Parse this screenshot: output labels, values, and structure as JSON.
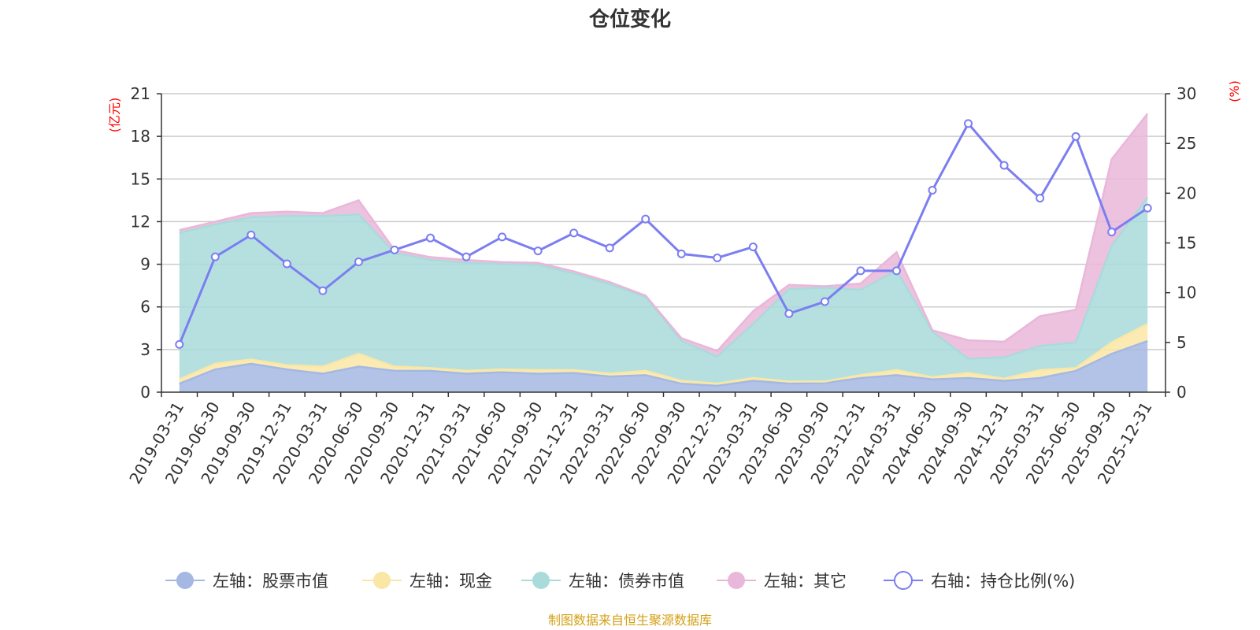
{
  "chart_data": {
    "type": "area",
    "title": "仓位变化",
    "left_axis_unit": "(亿元)",
    "right_axis_unit": "(%)",
    "left_ylim": [
      0,
      21
    ],
    "left_yticks": [
      0,
      3,
      6,
      9,
      12,
      15,
      18,
      21
    ],
    "right_ylim": [
      0,
      30
    ],
    "right_yticks": [
      0,
      5,
      10,
      15,
      20,
      25,
      30
    ],
    "categories": [
      "2019-03-31",
      "2019-06-30",
      "2019-09-30",
      "2019-12-31",
      "2020-03-31",
      "2020-06-30",
      "2020-09-30",
      "2020-12-31",
      "2021-03-31",
      "2021-06-30",
      "2021-09-30",
      "2021-12-31",
      "2022-03-31",
      "2022-06-30",
      "2022-09-30",
      "2022-12-31",
      "2023-03-31",
      "2023-06-30",
      "2023-09-30",
      "2023-12-31",
      "2024-03-31",
      "2024-06-30",
      "2024-09-30",
      "2024-12-31",
      "2025-03-31",
      "2025-06-30",
      "2025-09-30",
      "2025-12-31"
    ],
    "stacked_series": [
      {
        "name": "左轴：股票市值",
        "axis": "left",
        "color": "#a4b8e3",
        "values": [
          0.6,
          1.6,
          2.0,
          1.6,
          1.3,
          1.8,
          1.5,
          1.5,
          1.3,
          1.4,
          1.3,
          1.35,
          1.1,
          1.2,
          0.6,
          0.45,
          0.8,
          0.6,
          0.65,
          1.0,
          1.2,
          0.9,
          1.0,
          0.8,
          1.0,
          1.5,
          2.7,
          3.6
        ]
      },
      {
        "name": "左轴：现金",
        "axis": "left",
        "color": "#fae7a5",
        "values": [
          0.3,
          0.4,
          0.3,
          0.3,
          0.5,
          0.9,
          0.3,
          0.2,
          0.2,
          0.2,
          0.25,
          0.2,
          0.2,
          0.3,
          0.2,
          0.15,
          0.2,
          0.15,
          0.1,
          0.2,
          0.35,
          0.15,
          0.35,
          0.15,
          0.55,
          0.2,
          0.8,
          1.2
        ]
      },
      {
        "name": "左轴：债券市值",
        "axis": "left",
        "color": "#a9dbdb",
        "values": [
          10.3,
          9.8,
          10.0,
          10.5,
          10.6,
          9.8,
          8.0,
          7.6,
          7.6,
          7.4,
          7.4,
          6.8,
          6.3,
          5.2,
          2.8,
          1.9,
          3.8,
          6.5,
          6.6,
          6.0,
          7.0,
          3.2,
          1.0,
          1.5,
          1.7,
          1.8,
          6.8,
          8.9
        ]
      },
      {
        "name": "左轴：其它",
        "axis": "left",
        "color": "#e9b7d9",
        "values": [
          0.2,
          0.2,
          0.3,
          0.3,
          0.2,
          1.0,
          0.2,
          0.2,
          0.2,
          0.15,
          0.15,
          0.15,
          0.15,
          0.1,
          0.2,
          0.4,
          0.9,
          0.3,
          0.1,
          0.45,
          1.3,
          0.1,
          1.3,
          1.1,
          2.1,
          2.3,
          6.1,
          5.9
        ]
      }
    ],
    "line_series": {
      "name": "右轴：持仓比例(%)",
      "axis": "right",
      "color": "#7b7ef0",
      "values": [
        4.8,
        13.6,
        15.8,
        12.9,
        10.2,
        13.1,
        14.3,
        15.5,
        13.6,
        15.6,
        14.2,
        16.0,
        14.5,
        17.4,
        13.9,
        13.5,
        14.6,
        7.9,
        9.1,
        12.2,
        12.2,
        20.3,
        27.0,
        22.8,
        19.5,
        25.7,
        16.1,
        18.5
      ]
    },
    "legend_position": "bottom",
    "grid": true
  },
  "footer": "制图数据来自恒生聚源数据库"
}
